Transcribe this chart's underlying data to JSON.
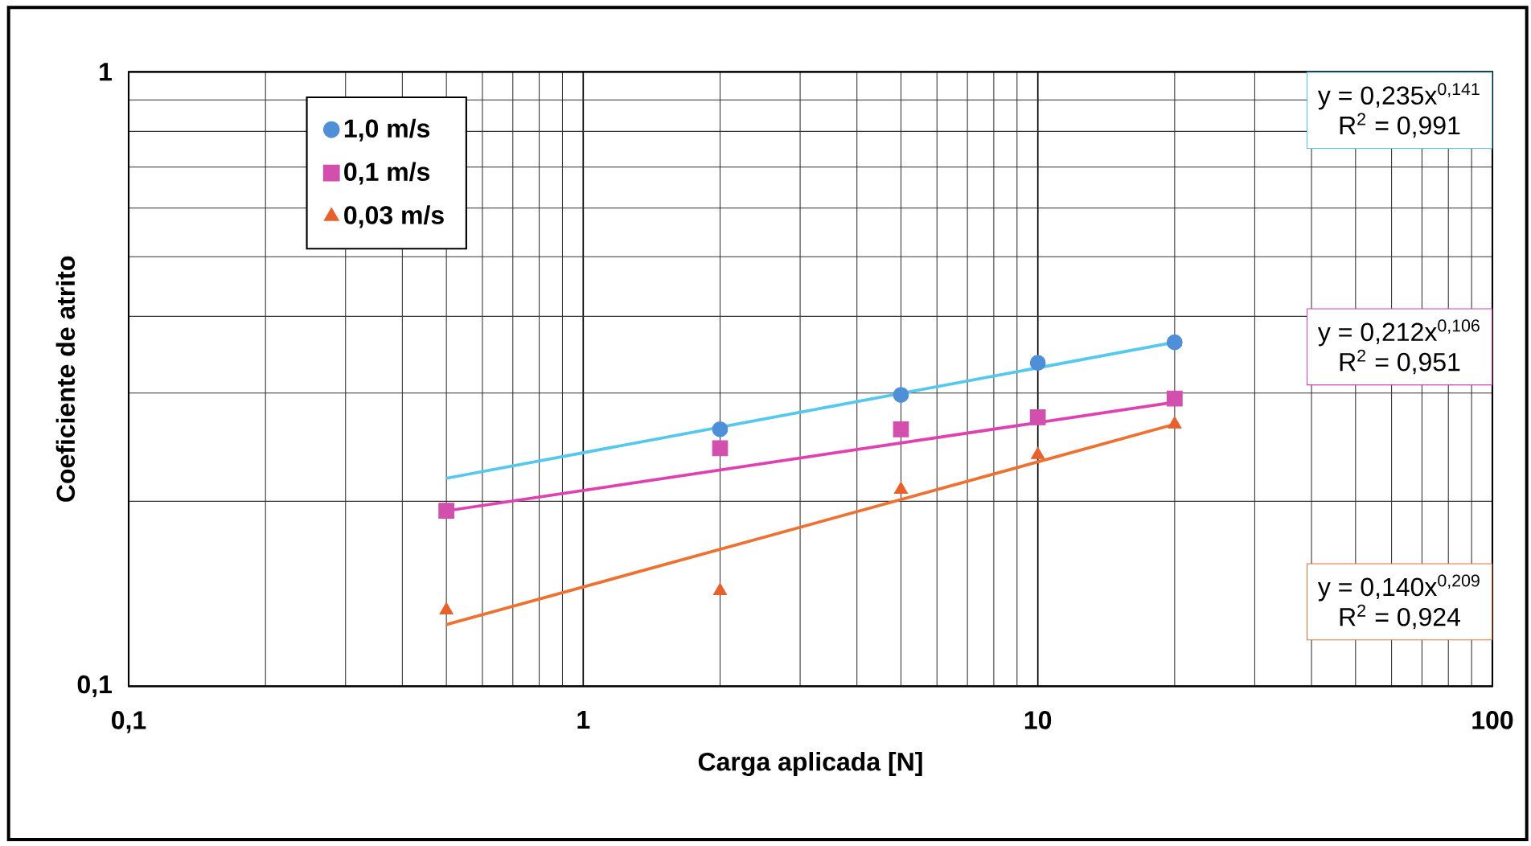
{
  "chart_data": {
    "type": "scatter",
    "xlabel": "Carga aplicada [N]",
    "ylabel": "Coeficiente de atrito",
    "log": "xy",
    "xlim": [
      0.1,
      100
    ],
    "ylim": [
      0.1,
      1
    ],
    "xticks": [
      {
        "value": 0.1,
        "label": "0,1"
      },
      1,
      10,
      100
    ],
    "yticks": [
      {
        "value": 0.1,
        "label": "0,1"
      },
      1
    ],
    "grid": true,
    "legend": "top left",
    "series": [
      {
        "name": "1,0 m/s",
        "color": "#4f8fd8",
        "marker": "circle",
        "x": [
          2,
          5,
          10,
          20
        ],
        "values": [
          0.262,
          0.298,
          0.336,
          0.363
        ]
      },
      {
        "name": "0,1 m/s",
        "color": "#d24fae",
        "marker": "square",
        "x": [
          0.5,
          2,
          5,
          10,
          20
        ],
        "values": [
          0.193,
          0.244,
          0.262,
          0.274,
          0.294
        ]
      },
      {
        "name": "0,03 m/s",
        "color": "#e8602c",
        "marker": "triangle",
        "x": [
          0.5,
          2,
          5,
          10,
          20
        ],
        "values": [
          0.133,
          0.143,
          0.209,
          0.238,
          0.267
        ]
      },
      {
        "type": "line",
        "color": "#55c8f0",
        "x": [
          0.5,
          20
        ],
        "values": [
          0.218,
          0.363
        ]
      },
      {
        "type": "line",
        "color": "#e040b0",
        "x": [
          0.5,
          20
        ],
        "values": [
          0.193,
          0.29
        ]
      },
      {
        "type": "line",
        "color": "#f07030",
        "x": [
          0.5,
          20
        ],
        "values": [
          0.126,
          0.267
        ]
      }
    ],
    "annotations": [
      "y = 0,235x$^{0,141}$",
      "R$^{2}$ = 0,991",
      "y = 0,212x$^{0,106}$",
      "R$^{2}$ = 0,951",
      "y = 0,140x$^{0,209}$",
      "R$^{2}$ = 0,924"
    ]
  }
}
